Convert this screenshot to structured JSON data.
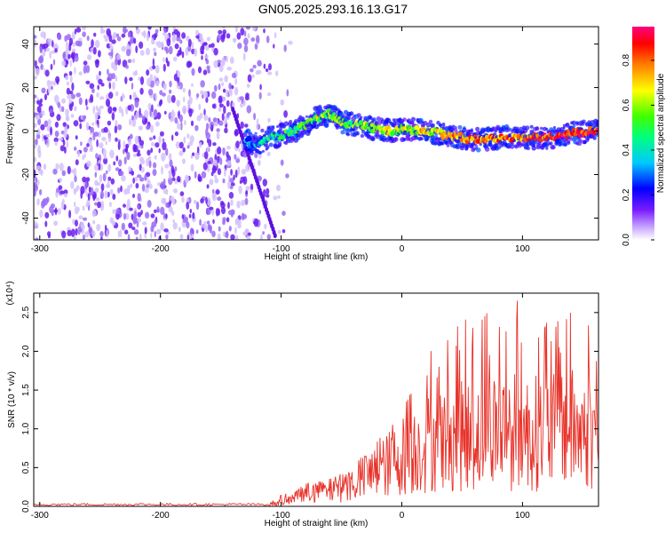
{
  "title": "GN05.2025.293.16.13.G17",
  "colors": {
    "signal": "#e8332a",
    "scatter": "#7b2ff7",
    "frame": "#000000"
  },
  "chart_data": [
    {
      "type": "heatmap",
      "xlabel": "Height of straight line (km)",
      "ylabel": "Frequency (Hz)",
      "xlim": [
        -305,
        163
      ],
      "ylim": [
        -50,
        48
      ],
      "x_ticks": [
        -300,
        -200,
        -100,
        0,
        100
      ],
      "y_ticks": [
        -40,
        -20,
        0,
        20,
        40
      ],
      "colorbar": {
        "label": "Normalized spectral amplitude",
        "range": [
          0.0,
          0.95
        ],
        "ticks": [
          0.0,
          0.2,
          0.4,
          0.6,
          0.8
        ],
        "colormap": "rainbow: white-violet-blue-cyan-green-yellow-orange-red-magenta"
      },
      "noise_region_x": [
        -305,
        -100
      ],
      "signal_trace": {
        "x": [
          -130,
          -120,
          -110,
          -100,
          -90,
          -80,
          -70,
          -60,
          -50,
          -40,
          -30,
          -20,
          -10,
          0,
          20,
          40,
          60,
          80,
          100,
          120,
          140,
          163
        ],
        "y": [
          -4,
          -6,
          -3,
          -2,
          0,
          3,
          6,
          8,
          4,
          3,
          2,
          1,
          0,
          1,
          0,
          -2,
          -4,
          -3,
          -3,
          -3,
          -1,
          0
        ],
        "amplitude": [
          0.3,
          0.35,
          0.4,
          0.45,
          0.5,
          0.5,
          0.6,
          0.55,
          0.6,
          0.55,
          0.6,
          0.55,
          0.6,
          0.6,
          0.65,
          0.7,
          0.8,
          0.75,
          0.8,
          0.85,
          0.9,
          0.85
        ]
      }
    },
    {
      "type": "line",
      "xlabel": "Height of straight line (km)",
      "ylabel": "SNR (10 * v/v)",
      "scale_label": "(x10⁴)",
      "xlim": [
        -305,
        163
      ],
      "ylim": [
        0,
        2.75
      ],
      "x_ticks": [
        -300,
        -200,
        -100,
        0,
        100
      ],
      "y_ticks": [
        0.0,
        0.5,
        1.0,
        1.5,
        2.0,
        2.5
      ],
      "y_tick_labels": [
        "0.0",
        "0.5",
        "1.0",
        "1.5",
        "2.0",
        "2.5"
      ],
      "series": [
        {
          "name": "SNR",
          "envelope_x": [
            -305,
            -200,
            -110,
            -100,
            -90,
            -80,
            -60,
            -40,
            -20,
            0,
            20,
            40,
            60,
            80,
            100,
            120,
            140,
            163
          ],
          "envelope_max": [
            0.03,
            0.03,
            0.04,
            0.15,
            0.2,
            0.3,
            0.35,
            0.5,
            1.0,
            1.3,
            2.1,
            2.3,
            2.6,
            2.6,
            2.7,
            2.5,
            2.7,
            2.2
          ],
          "envelope_mean": [
            0.02,
            0.02,
            0.02,
            0.05,
            0.1,
            0.15,
            0.2,
            0.3,
            0.45,
            0.65,
            0.8,
            0.9,
            0.9,
            1.0,
            0.95,
            0.95,
            1.0,
            0.9
          ]
        }
      ]
    }
  ],
  "tick_labels_top": [
    "-300",
    "-200",
    "-100",
    "0",
    "100"
  ],
  "tick_labels_bottom": [
    "-300",
    "-200",
    "-100",
    "0",
    "100"
  ],
  "ytick_labels_top": [
    "-40",
    "-20",
    "0",
    "20",
    "40"
  ],
  "cbar_labels": [
    "0.0",
    "0.2",
    "0.4",
    "0.6",
    "0.8"
  ]
}
